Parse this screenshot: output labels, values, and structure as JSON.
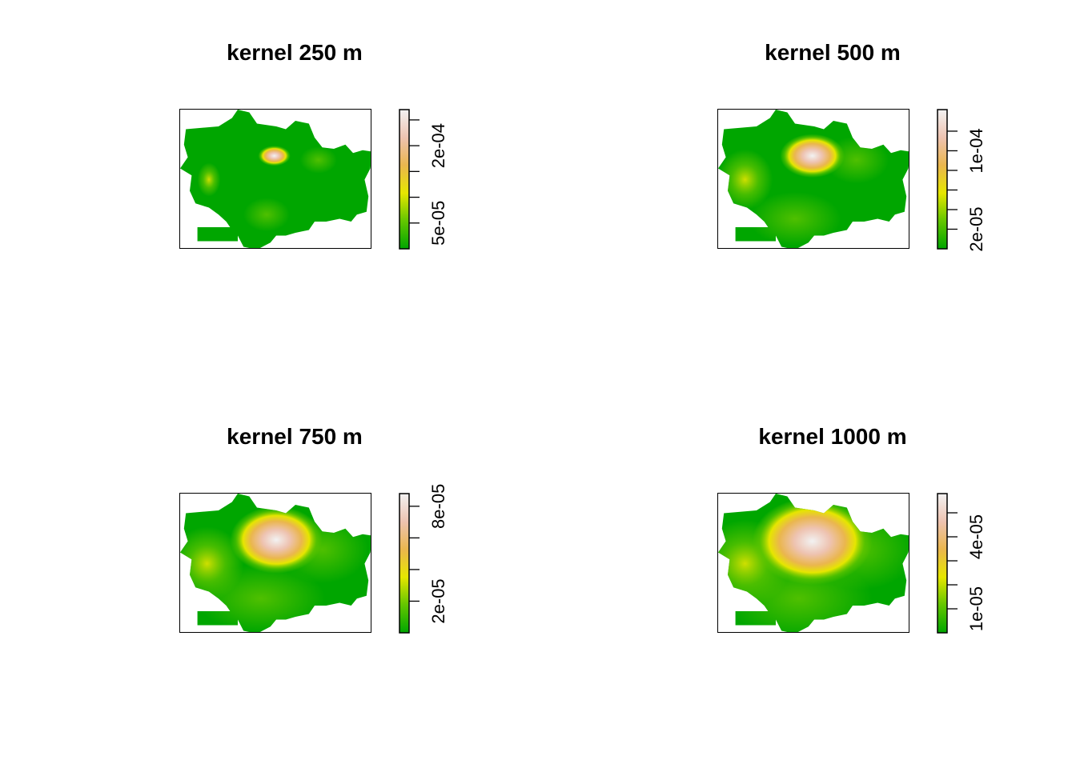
{
  "chart_data": [
    {
      "type": "heatmap",
      "title": "kernel 250 m",
      "colorscale": [
        "#00a600",
        "#63c600",
        "#e6e600",
        "#eab64e",
        "#eec3b1",
        "#f2f2f2"
      ],
      "legend_range": [
        0,
        0.00027
      ],
      "legend_ticks": [
        5e-05,
        0.0001,
        0.00015,
        0.0002,
        0.00025
      ],
      "legend_tick_labels": [
        "5e-05",
        "",
        "",
        "2e-04",
        ""
      ],
      "hotspots": [
        {
          "x": 0.49,
          "y": 0.33,
          "sx": 0.035,
          "sy": 0.03,
          "v": 1.0
        },
        {
          "x": 0.15,
          "y": 0.5,
          "sx": 0.025,
          "sy": 0.05,
          "v": 0.45
        },
        {
          "x": 0.72,
          "y": 0.36,
          "sx": 0.04,
          "sy": 0.04,
          "v": 0.15
        },
        {
          "x": 0.45,
          "y": 0.75,
          "sx": 0.05,
          "sy": 0.05,
          "v": 0.1
        }
      ]
    },
    {
      "type": "heatmap",
      "title": "kernel 500 m",
      "colorscale": [
        "#00a600",
        "#63c600",
        "#e6e600",
        "#eab64e",
        "#eec3b1",
        "#f2f2f2"
      ],
      "legend_range": [
        0,
        0.000142
      ],
      "legend_ticks": [
        2e-05,
        4e-05,
        6e-05,
        8e-05,
        0.0001,
        0.00012
      ],
      "legend_tick_labels": [
        "2e-05",
        "",
        "",
        "",
        "1e-04",
        ""
      ],
      "hotspots": [
        {
          "x": 0.49,
          "y": 0.33,
          "sx": 0.07,
          "sy": 0.065,
          "v": 1.0
        },
        {
          "x": 0.14,
          "y": 0.5,
          "sx": 0.06,
          "sy": 0.09,
          "v": 0.3
        },
        {
          "x": 0.72,
          "y": 0.36,
          "sx": 0.07,
          "sy": 0.07,
          "v": 0.15
        },
        {
          "x": 0.4,
          "y": 0.78,
          "sx": 0.1,
          "sy": 0.08,
          "v": 0.12
        }
      ]
    },
    {
      "type": "heatmap",
      "title": "kernel 750 m",
      "colorscale": [
        "#00a600",
        "#63c600",
        "#e6e600",
        "#eab64e",
        "#eec3b1",
        "#f2f2f2"
      ],
      "legend_range": [
        0,
        8.8e-05
      ],
      "legend_ticks": [
        2e-05,
        4e-05,
        6e-05,
        8e-05
      ],
      "legend_tick_labels": [
        "2e-05",
        "",
        "",
        "8e-05"
      ],
      "hotspots": [
        {
          "x": 0.5,
          "y": 0.33,
          "sx": 0.1,
          "sy": 0.1,
          "v": 1.0
        },
        {
          "x": 0.14,
          "y": 0.5,
          "sx": 0.08,
          "sy": 0.11,
          "v": 0.35
        },
        {
          "x": 0.74,
          "y": 0.4,
          "sx": 0.1,
          "sy": 0.1,
          "v": 0.18
        },
        {
          "x": 0.42,
          "y": 0.75,
          "sx": 0.14,
          "sy": 0.1,
          "v": 0.18
        }
      ]
    },
    {
      "type": "heatmap",
      "title": "kernel 1000 m",
      "colorscale": [
        "#00a600",
        "#63c600",
        "#e6e600",
        "#eab64e",
        "#eec3b1",
        "#f2f2f2"
      ],
      "legend_range": [
        0,
        5.8e-05
      ],
      "legend_ticks": [
        1e-05,
        2e-05,
        3e-05,
        4e-05,
        5e-05
      ],
      "legend_tick_labels": [
        "1e-05",
        "",
        "",
        "4e-05",
        ""
      ],
      "hotspots": [
        {
          "x": 0.49,
          "y": 0.34,
          "sx": 0.13,
          "sy": 0.13,
          "v": 1.0
        },
        {
          "x": 0.14,
          "y": 0.5,
          "sx": 0.1,
          "sy": 0.13,
          "v": 0.3
        },
        {
          "x": 0.74,
          "y": 0.4,
          "sx": 0.12,
          "sy": 0.12,
          "v": 0.18
        },
        {
          "x": 0.42,
          "y": 0.75,
          "sx": 0.16,
          "sy": 0.12,
          "v": 0.2
        }
      ]
    }
  ]
}
